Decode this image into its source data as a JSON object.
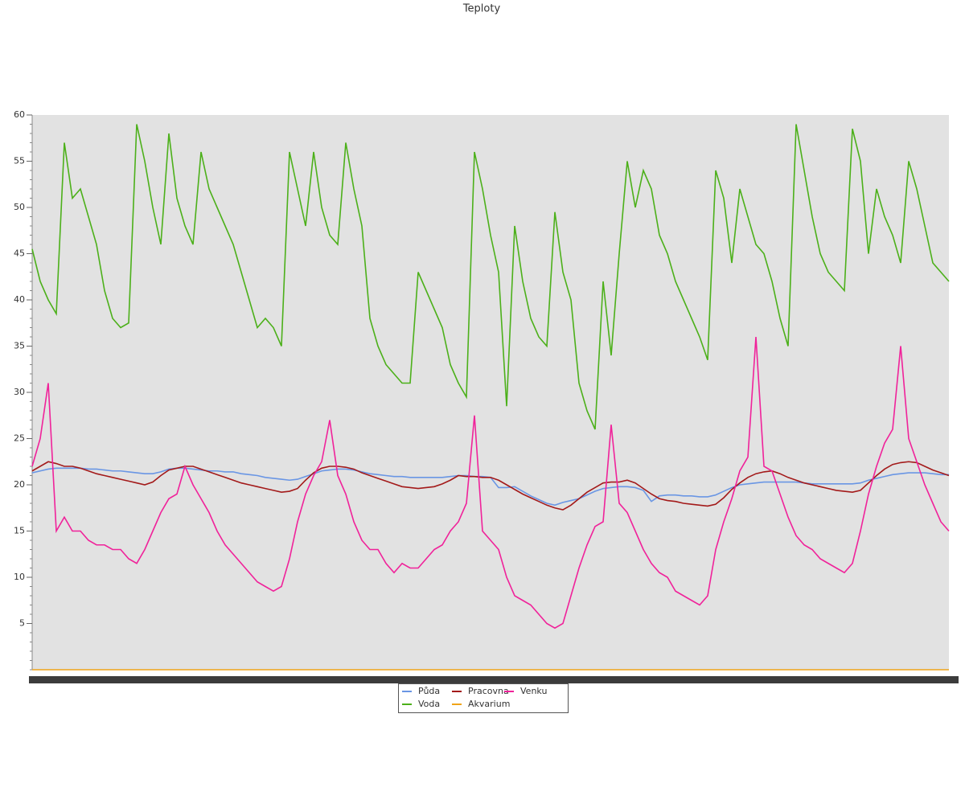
{
  "chart_data": {
    "type": "line",
    "title": "Teploty",
    "ylim": [
      0,
      60
    ],
    "yticks": [
      5,
      10,
      15,
      20,
      25,
      30,
      35,
      40,
      45,
      50,
      55,
      60
    ],
    "grid": false,
    "series": [
      {
        "name": "Půda",
        "color": "#6a96e4",
        "values": [
          21.3,
          21.5,
          21.7,
          21.8,
          21.8,
          21.8,
          21.8,
          21.7,
          21.7,
          21.6,
          21.5,
          21.5,
          21.4,
          21.3,
          21.2,
          21.2,
          21.4,
          21.7,
          21.8,
          21.8,
          21.7,
          21.6,
          21.5,
          21.5,
          21.4,
          21.4,
          21.2,
          21.1,
          21,
          20.8,
          20.7,
          20.6,
          20.5,
          20.6,
          20.9,
          21.2,
          21.5,
          21.6,
          21.7,
          21.7,
          21.6,
          21.4,
          21.2,
          21.1,
          21,
          20.9,
          20.9,
          20.8,
          20.8,
          20.8,
          20.8,
          20.8,
          20.9,
          21,
          21,
          20.9,
          20.9,
          20.8,
          19.7,
          19.7,
          19.8,
          19.3,
          18.8,
          18.4,
          18,
          17.8,
          18.1,
          18.3,
          18.5,
          18.9,
          19.3,
          19.6,
          19.7,
          19.8,
          19.8,
          19.7,
          19.4,
          18.2,
          18.8,
          18.9,
          18.9,
          18.8,
          18.8,
          18.7,
          18.7,
          18.9,
          19.3,
          19.7,
          20,
          20.1,
          20.2,
          20.3,
          20.3,
          20.3,
          20.3,
          20.3,
          20.2,
          20.1,
          20.1,
          20.1,
          20.1,
          20.1,
          20.1,
          20.2,
          20.5,
          20.7,
          20.9,
          21.1,
          21.2,
          21.3,
          21.3,
          21.3,
          21.2,
          21.1,
          21.1
        ]
      },
      {
        "name": "Pracovna",
        "color": "#a31a1a",
        "values": [
          21.5,
          22,
          22.5,
          22.3,
          22,
          22,
          21.8,
          21.5,
          21.2,
          21,
          20.8,
          20.6,
          20.4,
          20.2,
          20,
          20.3,
          21,
          21.6,
          21.8,
          22,
          22,
          21.7,
          21.4,
          21.1,
          20.8,
          20.5,
          20.2,
          20,
          19.8,
          19.6,
          19.4,
          19.2,
          19.3,
          19.6,
          20.5,
          21.3,
          21.8,
          22,
          22,
          21.9,
          21.7,
          21.3,
          21,
          20.7,
          20.4,
          20.1,
          19.8,
          19.7,
          19.6,
          19.7,
          19.8,
          20.1,
          20.5,
          21,
          20.9,
          20.9,
          20.8,
          20.8,
          20.5,
          20,
          19.5,
          19,
          18.6,
          18.2,
          17.8,
          17.5,
          17.3,
          17.8,
          18.5,
          19.2,
          19.7,
          20.2,
          20.3,
          20.3,
          20.5,
          20.2,
          19.6,
          19,
          18.5,
          18.3,
          18.2,
          18,
          17.9,
          17.8,
          17.7,
          17.9,
          18.6,
          19.5,
          20.2,
          20.8,
          21.2,
          21.4,
          21.5,
          21.2,
          20.8,
          20.5,
          20.2,
          20,
          19.8,
          19.6,
          19.4,
          19.3,
          19.2,
          19.4,
          20.2,
          21,
          21.7,
          22.2,
          22.4,
          22.5,
          22.4,
          22,
          21.6,
          21.3,
          21
        ]
      },
      {
        "name": "Venku",
        "color": "#f0229a",
        "values": [
          22,
          25,
          31,
          15,
          16.5,
          15,
          15,
          14,
          13.5,
          13.5,
          13,
          13,
          12,
          11.5,
          13,
          15,
          17,
          18.5,
          19,
          22,
          20,
          18.5,
          17,
          15,
          13.5,
          12.5,
          11.5,
          10.5,
          9.5,
          9,
          8.5,
          9,
          12,
          16,
          19,
          21,
          22.5,
          27,
          21,
          19,
          16,
          14,
          13,
          13,
          11.5,
          10.5,
          11.5,
          11,
          11,
          12,
          13,
          13.5,
          15,
          16,
          18,
          27.5,
          15,
          14,
          13,
          10,
          8,
          7.5,
          7,
          6,
          5,
          4.5,
          5,
          8,
          11,
          13.5,
          15.5,
          16,
          26.5,
          18,
          17,
          15,
          13,
          11.5,
          10.5,
          10,
          8.5,
          8,
          7.5,
          7,
          8,
          13,
          16,
          18.5,
          21.5,
          23,
          36,
          22,
          21.5,
          19,
          16.5,
          14.5,
          13.5,
          13,
          12,
          11.5,
          11,
          10.5,
          11.5,
          15,
          19,
          22,
          24.5,
          26,
          35,
          25,
          22.5,
          20,
          18,
          16,
          15
        ]
      },
      {
        "name": "Voda",
        "color": "#4cb01a",
        "values": [
          45.5,
          42,
          40,
          38.5,
          57,
          51,
          52,
          49,
          46,
          41,
          38,
          37,
          37.5,
          59,
          55,
          50,
          46,
          58,
          51,
          48,
          46,
          56,
          52,
          50,
          48,
          46,
          43,
          40,
          37,
          38,
          37,
          35,
          56,
          52,
          48,
          56,
          50,
          47,
          46,
          57,
          52,
          48,
          38,
          35,
          33,
          32,
          31,
          31,
          43,
          41,
          39,
          37,
          33,
          31,
          29.5,
          56,
          52,
          47,
          43,
          28.5,
          48,
          42,
          38,
          36,
          35,
          49.5,
          43,
          40,
          31,
          28,
          26,
          42,
          34,
          45,
          55,
          50,
          54,
          52,
          47,
          45,
          42,
          40,
          38,
          36,
          33.5,
          54,
          51,
          44,
          52,
          49,
          46,
          45,
          42,
          38,
          35,
          59,
          54,
          49,
          45,
          43,
          42,
          41,
          58.5,
          55,
          45,
          52,
          49,
          47,
          44,
          55,
          52,
          48,
          44,
          43,
          42
        ]
      },
      {
        "name": "Akvarium",
        "color": "#f0a418",
        "values": [
          0,
          0,
          0,
          0,
          0,
          0,
          0,
          0,
          0,
          0,
          0,
          0,
          0,
          0,
          0,
          0,
          0,
          0,
          0,
          0,
          0,
          0,
          0,
          0,
          0,
          0,
          0,
          0,
          0,
          0,
          0,
          0,
          0,
          0,
          0,
          0,
          0,
          0,
          0,
          0,
          0,
          0,
          0,
          0,
          0,
          0,
          0,
          0,
          0,
          0,
          0,
          0,
          0,
          0,
          0,
          0,
          0,
          0,
          0,
          0,
          0,
          0,
          0,
          0,
          0,
          0,
          0,
          0,
          0,
          0,
          0,
          0,
          0,
          0,
          0,
          0,
          0,
          0,
          0,
          0,
          0,
          0,
          0,
          0,
          0,
          0,
          0,
          0,
          0,
          0,
          0,
          0,
          0,
          0,
          0,
          0,
          0,
          0,
          0,
          0,
          0,
          0,
          0,
          0,
          0,
          0,
          0,
          0,
          0,
          0,
          0,
          0,
          0,
          0,
          0
        ]
      }
    ]
  }
}
